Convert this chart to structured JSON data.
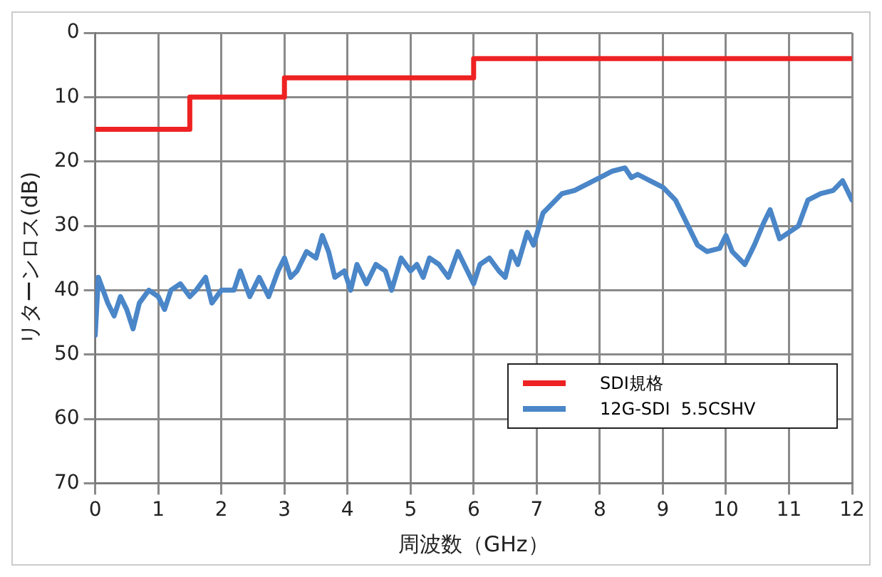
{
  "chart_data": {
    "type": "line",
    "xlabel": "周波数（GHz）",
    "ylabel": "リターンロス(dB)",
    "xlim": [
      0,
      12
    ],
    "xticks": [
      0,
      1,
      2,
      3,
      4,
      5,
      6,
      7,
      8,
      9,
      10,
      11,
      12
    ],
    "ylim": [
      70,
      0
    ],
    "yticks": [
      0,
      10,
      20,
      30,
      40,
      50,
      60,
      70
    ],
    "grid": true,
    "legend": "bottom right",
    "marker": "none",
    "line_style": "solid",
    "series": [
      {
        "name": "SDI規格",
        "type": "step",
        "color": "#ee2222",
        "x": [
          0,
          1.5,
          3,
          6,
          12
        ],
        "values": [
          15,
          10,
          7,
          4,
          4
        ]
      },
      {
        "name": "12G-SDI  5.5CSHV",
        "type": "line",
        "color": "#4a86c8",
        "x": [
          0,
          0.05,
          0.2,
          0.3,
          0.4,
          0.5,
          0.6,
          0.7,
          0.85,
          1.0,
          1.1,
          1.2,
          1.35,
          1.5,
          1.6,
          1.75,
          1.85,
          2.0,
          2.2,
          2.3,
          2.45,
          2.6,
          2.75,
          2.9,
          3.0,
          3.1,
          3.2,
          3.35,
          3.5,
          3.6,
          3.7,
          3.8,
          3.95,
          4.05,
          4.15,
          4.3,
          4.45,
          4.6,
          4.7,
          4.85,
          5.0,
          5.1,
          5.2,
          5.3,
          5.45,
          5.6,
          5.75,
          5.9,
          6.0,
          6.1,
          6.25,
          6.4,
          6.5,
          6.6,
          6.7,
          6.85,
          6.95,
          7.1,
          7.2,
          7.4,
          7.6,
          7.8,
          8.0,
          8.2,
          8.4,
          8.5,
          8.6,
          8.8,
          9.0,
          9.2,
          9.4,
          9.55,
          9.7,
          9.9,
          10.0,
          10.1,
          10.3,
          10.45,
          10.6,
          10.7,
          10.85,
          11.0,
          11.15,
          11.3,
          11.5,
          11.7,
          11.85,
          12.0
        ],
        "values": [
          47,
          38,
          42,
          44,
          41,
          43,
          46,
          42,
          40,
          41,
          43,
          40,
          39,
          41,
          40,
          38,
          42,
          40,
          40,
          37,
          41,
          38,
          41,
          37,
          35,
          38,
          37,
          34,
          35,
          31.5,
          34,
          38,
          37,
          40,
          36,
          39,
          36,
          37,
          40,
          35,
          37,
          36,
          38,
          35,
          36,
          38,
          34,
          37,
          39,
          36,
          35,
          37,
          38,
          34,
          36,
          31,
          33,
          28,
          27,
          25,
          24.5,
          23.5,
          22.5,
          21.5,
          21,
          22.5,
          22,
          23,
          24,
          26,
          30,
          33,
          34,
          33.5,
          31.5,
          34,
          36,
          33,
          29.5,
          27.5,
          32,
          31,
          30,
          26,
          25,
          24.5,
          23,
          26
        ]
      }
    ]
  }
}
